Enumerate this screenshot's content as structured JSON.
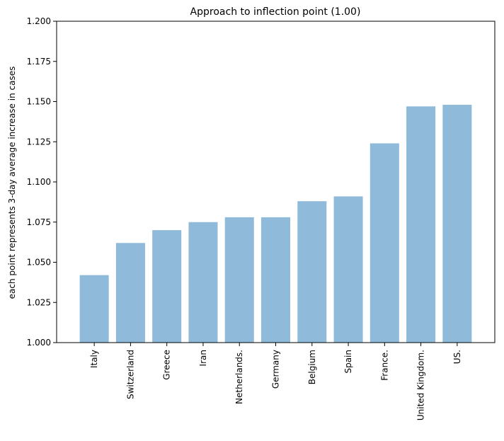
{
  "chart_data": {
    "type": "bar",
    "title": "Approach to inflection point (1.00)",
    "xlabel": "",
    "ylabel": "each point represents 3-day average increase in cases",
    "categories": [
      "Italy",
      "Switzerland",
      "Greece",
      "Iran",
      "Netherlands.",
      "Germany",
      "Belgium",
      "Spain",
      "France.",
      "United Kingdom.",
      "US."
    ],
    "values": [
      1.042,
      1.062,
      1.07,
      1.075,
      1.078,
      1.078,
      1.088,
      1.091,
      1.124,
      1.147,
      1.148
    ],
    "ylim": [
      1.0,
      1.2
    ],
    "yticks": [
      "1.000",
      "1.025",
      "1.050",
      "1.075",
      "1.100",
      "1.125",
      "1.150",
      "1.175",
      "1.200"
    ],
    "grid": false,
    "legend": "none",
    "bar_color": "#8fbad9",
    "axis_color": "#000000"
  }
}
